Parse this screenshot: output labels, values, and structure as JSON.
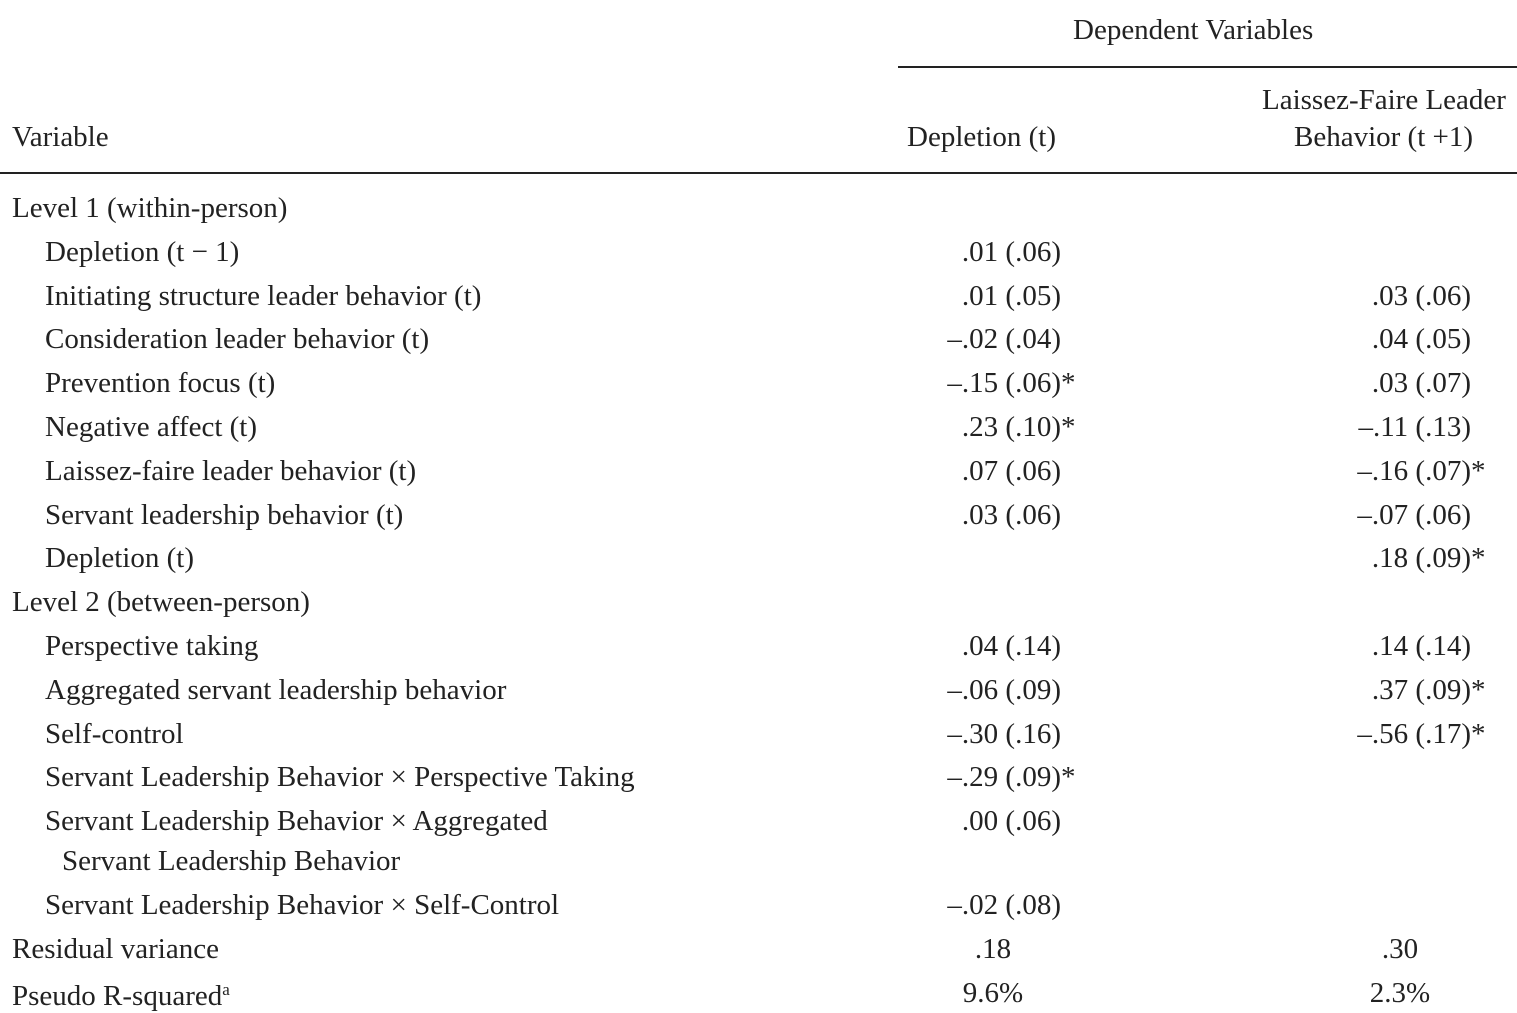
{
  "header": {
    "group_title": "Dependent Variables",
    "columns": [
      "Variable",
      "Depletion (t)",
      [
        "Laissez-Faire Leader",
        "Behavior (t +1)"
      ]
    ]
  },
  "table": {
    "rows": [
      {
        "label": "Level 1 (within-person)",
        "level": true,
        "c1": null,
        "c2": null
      },
      {
        "label": "Depletion (t − 1)",
        "c1": {
          "est": ".01 (.06)"
        },
        "c2": null
      },
      {
        "label": "Initiating structure leader behavior (t)",
        "c1": {
          "est": ".01 (.05)"
        },
        "c2": {
          "est": ".03 (.06)"
        }
      },
      {
        "label": "Consideration leader behavior (t)",
        "c1": {
          "est": "–.02 (.04)"
        },
        "c2": {
          "est": ".04 (.05)"
        }
      },
      {
        "label": "Prevention focus (t)",
        "c1": {
          "est": "–.15 (.06)",
          "sig": "*"
        },
        "c2": {
          "est": ".03 (.07)"
        }
      },
      {
        "label": "Negative affect (t)",
        "c1": {
          "est": ".23 (.10)",
          "sig": "*"
        },
        "c2": {
          "est": "–.11 (.13)"
        }
      },
      {
        "label": "Laissez-faire leader behavior (t)",
        "c1": {
          "est": ".07 (.06)"
        },
        "c2": {
          "est": "–.16 (.07)",
          "sig": "*"
        }
      },
      {
        "label": "Servant leadership behavior (t)",
        "c1": {
          "est": ".03 (.06)"
        },
        "c2": {
          "est": "–.07 (.06)"
        }
      },
      {
        "label": "Depletion (t)",
        "c1": null,
        "c2": {
          "est": ".18 (.09)",
          "sig": "*"
        }
      },
      {
        "label": "Level 2 (between-person)",
        "level": true,
        "c1": null,
        "c2": null
      },
      {
        "label": "Perspective taking",
        "c1": {
          "est": ".04 (.14)"
        },
        "c2": {
          "est": ".14 (.14)"
        }
      },
      {
        "label": "Aggregated servant leadership behavior",
        "c1": {
          "est": "–.06 (.09)"
        },
        "c2": {
          "est": ".37 (.09)",
          "sig": "*"
        }
      },
      {
        "label": "Self-control",
        "c1": {
          "est": "–.30 (.16)"
        },
        "c2": {
          "est": "–.56 (.17)",
          "sig": "*"
        }
      },
      {
        "label": "Servant Leadership Behavior × Perspective Taking",
        "c1": {
          "est": "–.29 (.09)",
          "sig": "*"
        },
        "c2": null
      },
      {
        "label": "Servant Leadership Behavior × Aggregated",
        "label_cont": "Servant Leadership Behavior",
        "c1": {
          "est": ".00 (.06)"
        },
        "c2": null
      },
      {
        "label": "Servant Leadership Behavior × Self-Control",
        "c1": {
          "est": "–.02 (.08)"
        },
        "c2": null
      },
      {
        "label": "Residual variance",
        "level": true,
        "summary": true,
        "c1": {
          "est": ".18"
        },
        "c2": {
          "est": ".30"
        }
      },
      {
        "label": "Pseudo R-squared",
        "note_mark": "a",
        "level": true,
        "summary": true,
        "c1": {
          "est": "9.6%"
        },
        "c2": {
          "est": "2.3%"
        }
      }
    ]
  }
}
